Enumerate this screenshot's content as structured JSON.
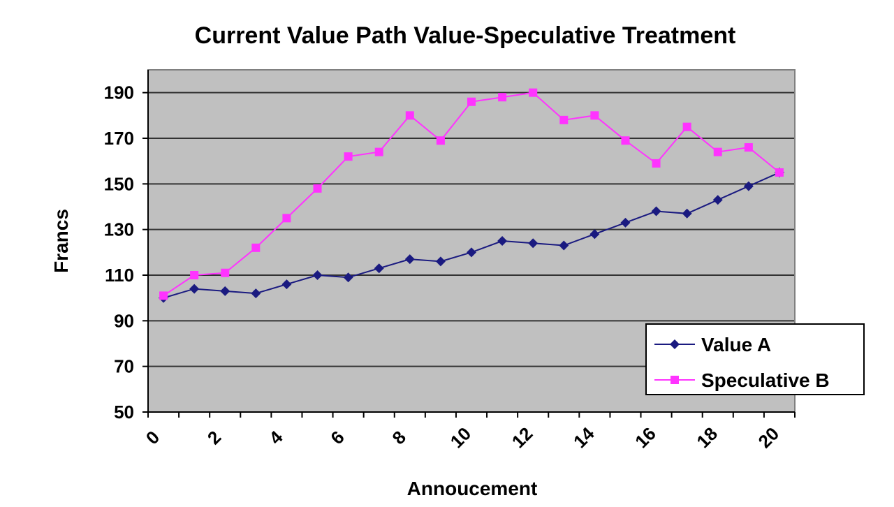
{
  "chart_data": {
    "type": "line",
    "title": "Current Value Path Value-Speculative Treatment",
    "xlabel": "Annoucement",
    "ylabel": "Francs",
    "xlim": [
      0,
      21
    ],
    "ylim": [
      50,
      200
    ],
    "x_ticks": [
      0,
      2,
      4,
      6,
      8,
      10,
      12,
      14,
      16,
      18,
      20
    ],
    "y_ticks": [
      50,
      70,
      90,
      110,
      130,
      150,
      170,
      190
    ],
    "grid": true,
    "legend_position": "bottom-right",
    "x": [
      0.5,
      1.5,
      2.5,
      3.5,
      4.5,
      5.5,
      6.5,
      7.5,
      8.5,
      9.5,
      10.5,
      11.5,
      12.5,
      13.5,
      14.5,
      15.5,
      16.5,
      17.5,
      18.5,
      19.5,
      20.5
    ],
    "series": [
      {
        "name": "Value A",
        "color": "#1a1a80",
        "marker": "diamond",
        "values": [
          100,
          104,
          103,
          102,
          106,
          110,
          109,
          113,
          117,
          116,
          120,
          125,
          124,
          123,
          128,
          133,
          138,
          137,
          143,
          149,
          155
        ]
      },
      {
        "name": "Speculative B",
        "color": "#ff33ff",
        "marker": "square",
        "values": [
          101,
          110,
          111,
          122,
          135,
          148,
          162,
          164,
          180,
          169,
          186,
          188,
          190,
          178,
          180,
          169,
          159,
          175,
          164,
          166,
          155
        ]
      }
    ],
    "plot_background": "#c0c0c0",
    "grid_color": "#333333"
  }
}
